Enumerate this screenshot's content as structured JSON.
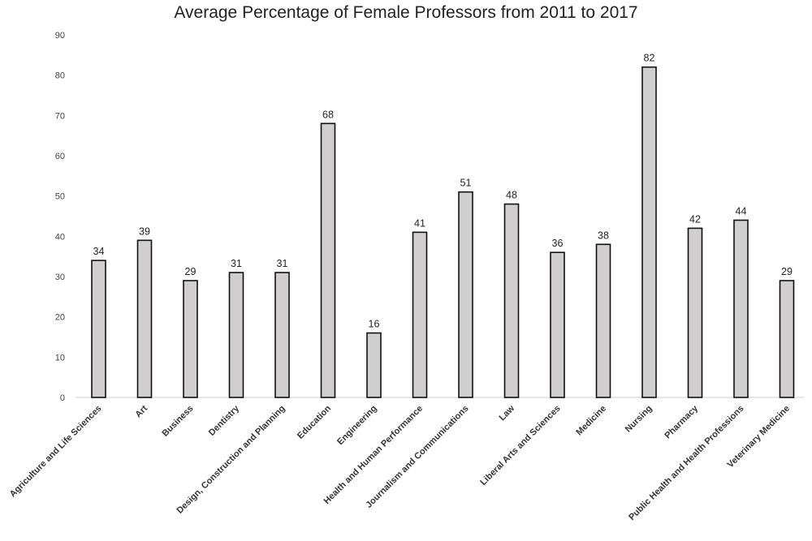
{
  "chart_data": {
    "type": "bar",
    "title": "Average Percentage of Female Professors from 2011 to 2017",
    "xlabel": "",
    "ylabel": "",
    "ylim": [
      0,
      90
    ],
    "yticks": [
      0,
      10,
      20,
      30,
      40,
      50,
      60,
      70,
      80,
      90
    ],
    "grid": false,
    "categories": [
      "Agriculture and Life Sciences",
      "Art",
      "Business",
      "Dentistry",
      "Design, Construction and Planning",
      "Education",
      "Engineering",
      "Health and Human Performance",
      "Journalism and Communications",
      "Law",
      "Liberal Arts and Sciences",
      "Medicine",
      "Nursing",
      "Pharmacy",
      "Public Health and Health Professions",
      "Veterinary Medicine"
    ],
    "values": [
      34,
      39,
      29,
      31,
      31,
      68,
      16,
      41,
      51,
      48,
      36,
      38,
      82,
      42,
      44,
      29
    ],
    "bar_color": "#d0cece",
    "bar_edge_color": "#111111"
  }
}
